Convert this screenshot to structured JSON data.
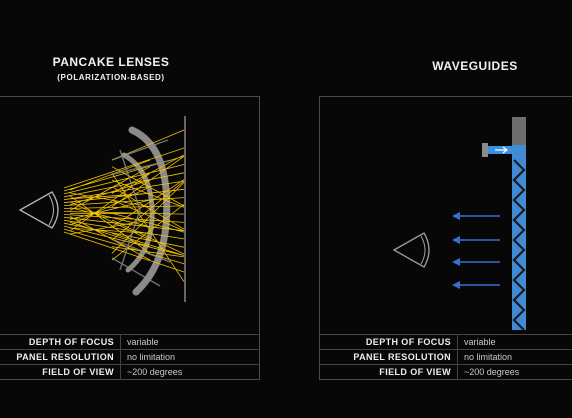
{
  "pancake": {
    "title": "PANCAKE LENSES",
    "subtitle": "(POLARIZATION-BASED)",
    "specs": [
      {
        "label": "DEPTH OF FOCUS",
        "value": "variable"
      },
      {
        "label": "PANEL RESOLUTION",
        "value": "no limitation"
      },
      {
        "label": "FIELD OF VIEW",
        "value": "~200 degrees"
      }
    ]
  },
  "waveguides": {
    "title": "WAVEGUIDES",
    "specs": [
      {
        "label": "DEPTH OF FOCUS",
        "value": "variable"
      },
      {
        "label": "PANEL RESOLUTION",
        "value": "no limitation"
      },
      {
        "label": "FIELD OF VIEW",
        "value": "~200 degrees"
      }
    ]
  },
  "colors": {
    "background": "#070707",
    "ray_yellow": "#f2c200",
    "lens_gray": "#8a8a8a",
    "waveguide_blue": "#3a8fe0",
    "arrow_blue": "#3a6fd0"
  }
}
